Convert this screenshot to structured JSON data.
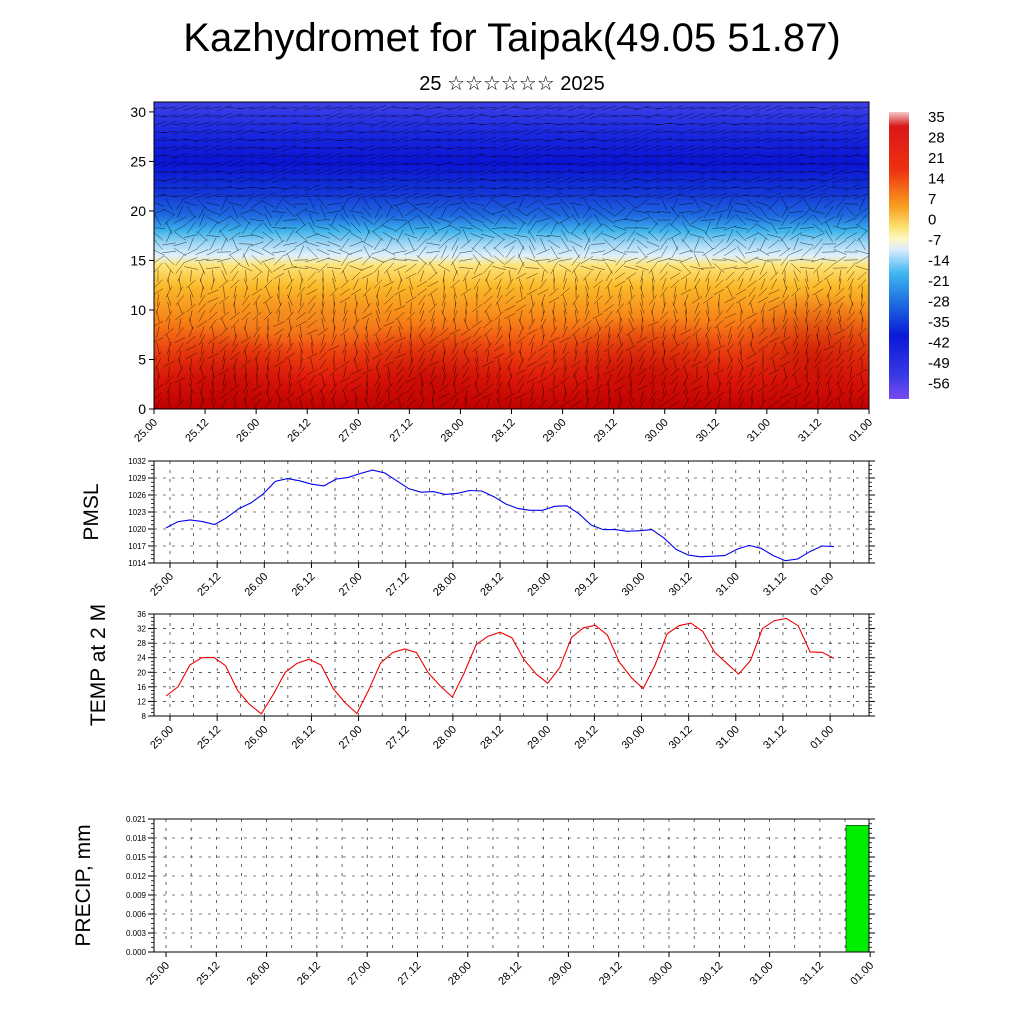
{
  "title": "Kazhydromet for Taipak(49.05 51.87)",
  "subtitle": "25 ☆☆☆☆☆☆ 2025",
  "chart_data": [
    {
      "type": "heatmap",
      "name": "cross-section",
      "x_ticks": [
        "25.00",
        "25.12",
        "26.00",
        "26.12",
        "27.00",
        "27.12",
        "28.00",
        "28.12",
        "29.00",
        "29.12",
        "30.00",
        "30.12",
        "31.00",
        "31.12",
        "01.00"
      ],
      "y_ticks": [
        0,
        5,
        10,
        15,
        20,
        25,
        30
      ],
      "ylim": [
        0,
        31
      ],
      "colorbar_labels": [
        "35",
        "28",
        "21",
        "14",
        "7",
        "0",
        "-7",
        "-14",
        "-21",
        "-28",
        "-35",
        "-42",
        "-49",
        "-56"
      ],
      "colorbar_range": [
        -63,
        38
      ],
      "wind_vectors": true
    },
    {
      "type": "line",
      "name": "pmsl",
      "ylabel": "PMSL",
      "x_ticks": [
        "25.00",
        "25.12",
        "26.00",
        "26.12",
        "27.00",
        "27.12",
        "28.00",
        "28.12",
        "29.00",
        "29.12",
        "30.00",
        "30.12",
        "31.00",
        "31.12",
        "01.00"
      ],
      "y_ticks": [
        1014,
        1017,
        1020,
        1023,
        1026,
        1029,
        1032
      ],
      "ylim": [
        1014,
        1032
      ],
      "color": "#0000ee",
      "grid": true,
      "values": [
        1020.2,
        1021.3,
        1021.6,
        1021.3,
        1020.8,
        1022.0,
        1023.6,
        1024.6,
        1026.2,
        1028.4,
        1028.9,
        1028.5,
        1027.9,
        1027.6,
        1028.8,
        1029.1,
        1029.8,
        1030.4,
        1029.9,
        1028.5,
        1027.1,
        1026.5,
        1026.6,
        1026.1,
        1026.3,
        1026.8,
        1026.7,
        1025.7,
        1024.4,
        1023.6,
        1023.3,
        1023.3,
        1024.0,
        1024.1,
        1022.7,
        1020.7,
        1019.9,
        1019.9,
        1019.6,
        1019.7,
        1019.9,
        1018.4,
        1016.4,
        1015.4,
        1015.1,
        1015.2,
        1015.3,
        1016.4,
        1017.1,
        1016.6,
        1015.3,
        1014.4,
        1014.7,
        1016.0,
        1017.0,
        1016.9
      ]
    },
    {
      "type": "line",
      "name": "temp2m",
      "ylabel": "TEMP at 2 M",
      "x_ticks": [
        "25.00",
        "25.12",
        "26.00",
        "26.12",
        "27.00",
        "27.12",
        "28.00",
        "28.12",
        "29.00",
        "29.12",
        "30.00",
        "30.12",
        "31.00",
        "31.12",
        "01.00"
      ],
      "y_ticks": [
        8,
        12,
        16,
        20,
        24,
        28,
        32,
        36
      ],
      "ylim": [
        8,
        36
      ],
      "color": "#ee0000",
      "grid": true,
      "values": [
        13.5,
        16.0,
        22.0,
        24.0,
        24.1,
        21.8,
        15.0,
        11.2,
        8.6,
        14.0,
        20.0,
        22.5,
        23.6,
        22.0,
        15.6,
        11.7,
        8.7,
        15.2,
        22.6,
        25.4,
        26.4,
        25.4,
        19.8,
        16.2,
        13.2,
        19.8,
        27.6,
        29.9,
        31.0,
        29.5,
        23.5,
        19.6,
        17.0,
        21.2,
        29.6,
        32.2,
        32.9,
        30.2,
        22.8,
        18.6,
        15.5,
        22.0,
        30.5,
        32.8,
        33.5,
        31.2,
        25.5,
        22.5,
        19.5,
        23.2,
        32.0,
        34.2,
        34.8,
        32.8,
        25.6,
        25.5,
        23.8
      ]
    },
    {
      "type": "bar",
      "name": "precip",
      "ylabel": "PRECIP, mm",
      "x_ticks": [
        "25.00",
        "25.12",
        "26.00",
        "26.12",
        "27.00",
        "27.12",
        "28.00",
        "28.12",
        "29.00",
        "29.12",
        "30.00",
        "30.12",
        "31.00",
        "31.12",
        "01.00"
      ],
      "y_ticks": [
        "0.000",
        "0.003",
        "0.006",
        "0.009",
        "0.012",
        "0.015",
        "0.018",
        "0.021"
      ],
      "ylim": [
        0,
        0.021
      ],
      "color": "#00ee00",
      "grid": true,
      "bars": [
        {
          "interval": "31.18-01.00",
          "value": 0.02
        }
      ]
    }
  ]
}
